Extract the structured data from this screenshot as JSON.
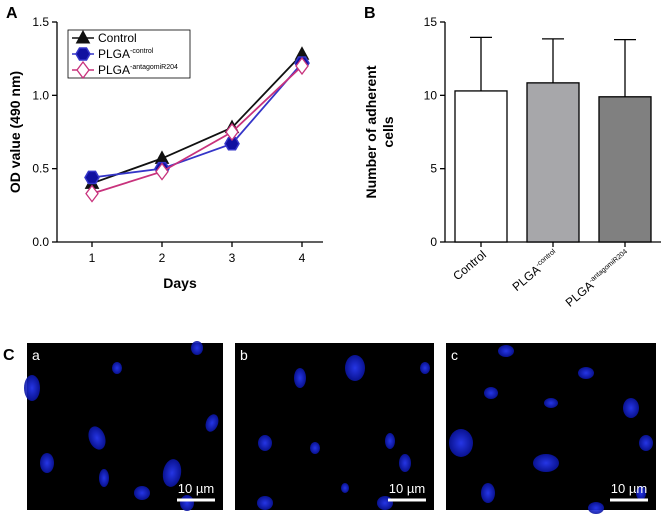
{
  "chart_data": [
    {
      "type": "line",
      "xlabel": "Days",
      "ylabel": "OD value (490 nm)",
      "xlim": [
        0.5,
        4.3
      ],
      "xticks": [
        1,
        2,
        3,
        4
      ],
      "ylim": [
        0,
        1.5
      ],
      "yticks": [
        {
          "value": 0,
          "label": "0.0"
        },
        0.5,
        {
          "value": 1,
          "label": "1.0"
        },
        1.5
      ],
      "x": [
        1,
        2,
        3,
        4
      ],
      "legend": "upper-left",
      "series": [
        {
          "name": "Control",
          "color": "#111111",
          "marker": "triangle",
          "values": [
            0.4,
            0.57,
            0.78,
            1.28
          ]
        },
        {
          "name": "PLGA",
          "name_superscript": "-control",
          "color": "#3535c8",
          "marker": "hexagon",
          "values": [
            0.44,
            0.5,
            0.67,
            1.22
          ]
        },
        {
          "name": "PLGA",
          "name_superscript": "-antagomiR204",
          "color": "#c8327c",
          "marker": "open-diamond",
          "values": [
            0.33,
            0.48,
            0.75,
            1.2
          ]
        }
      ]
    },
    {
      "type": "bar",
      "ylabel": [
        "Number of adherent",
        "cells"
      ],
      "ylim": [
        0,
        15
      ],
      "yticks": [
        0,
        5,
        10,
        15
      ],
      "categories": [
        {
          "label": "Control"
        },
        {
          "label": "PLGA",
          "superscript": "-control"
        },
        {
          "label": "PLGA",
          "superscript": "-antagomiR204"
        }
      ],
      "values": [
        10.3,
        10.85,
        9.9
      ],
      "errors": [
        3.65,
        3.0,
        3.9
      ],
      "colors": [
        "#ffffff",
        "#a7a7aa",
        "#808080"
      ]
    }
  ],
  "panels": {
    "labels": [
      "A",
      "B",
      "C"
    ]
  },
  "micrographs": {
    "labels": [
      "a",
      "b",
      "c"
    ],
    "scale_bar": "10 µm"
  }
}
